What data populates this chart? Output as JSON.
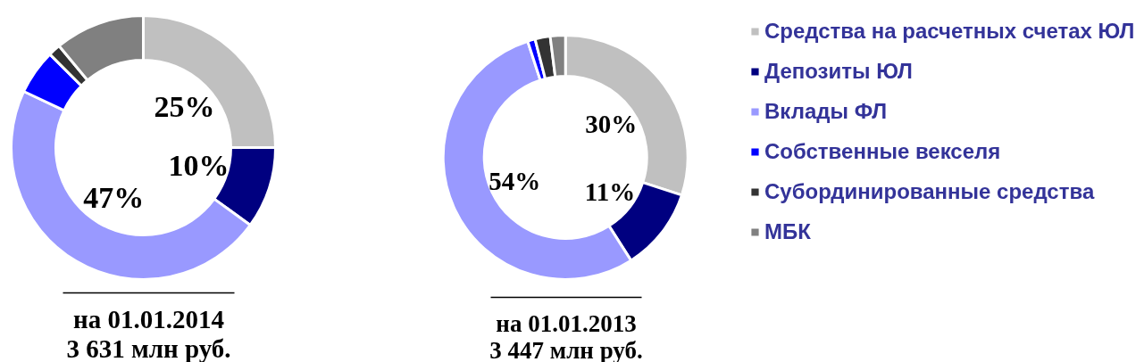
{
  "chart_data": [
    {
      "type": "donut",
      "title": "на 01.01.2014",
      "subtitle": "3 631 млн руб.",
      "categories": [
        "Средства на расчетных счетах ЮЛ",
        "Депозиты ЮЛ",
        "Вклады ФЛ",
        "Собственные векселя",
        "Субординированные средства",
        "МБК"
      ],
      "values": [
        25,
        10,
        47,
        5.5,
        1.5,
        11
      ],
      "colors": [
        "#c0c0c0",
        "#000080",
        "#9999ff",
        "#0000ff",
        "#333333",
        "#808080"
      ],
      "value_labels": [
        "25%",
        "10%",
        "47%",
        null,
        null,
        null
      ],
      "legend": "right"
    },
    {
      "type": "donut",
      "title": "на 01.01.2013",
      "subtitle": "3 447 млн руб.",
      "categories": [
        null,
        null,
        null,
        null,
        null,
        null
      ],
      "values": [
        30,
        11,
        54,
        1,
        2,
        2
      ],
      "colors": [
        "#c0c0c0",
        "#000080",
        "#9999ff",
        "#0000ff",
        "#333333",
        "#808080"
      ],
      "value_labels": [
        "30%",
        "11%",
        "54%",
        null,
        null,
        null
      ]
    }
  ]
}
